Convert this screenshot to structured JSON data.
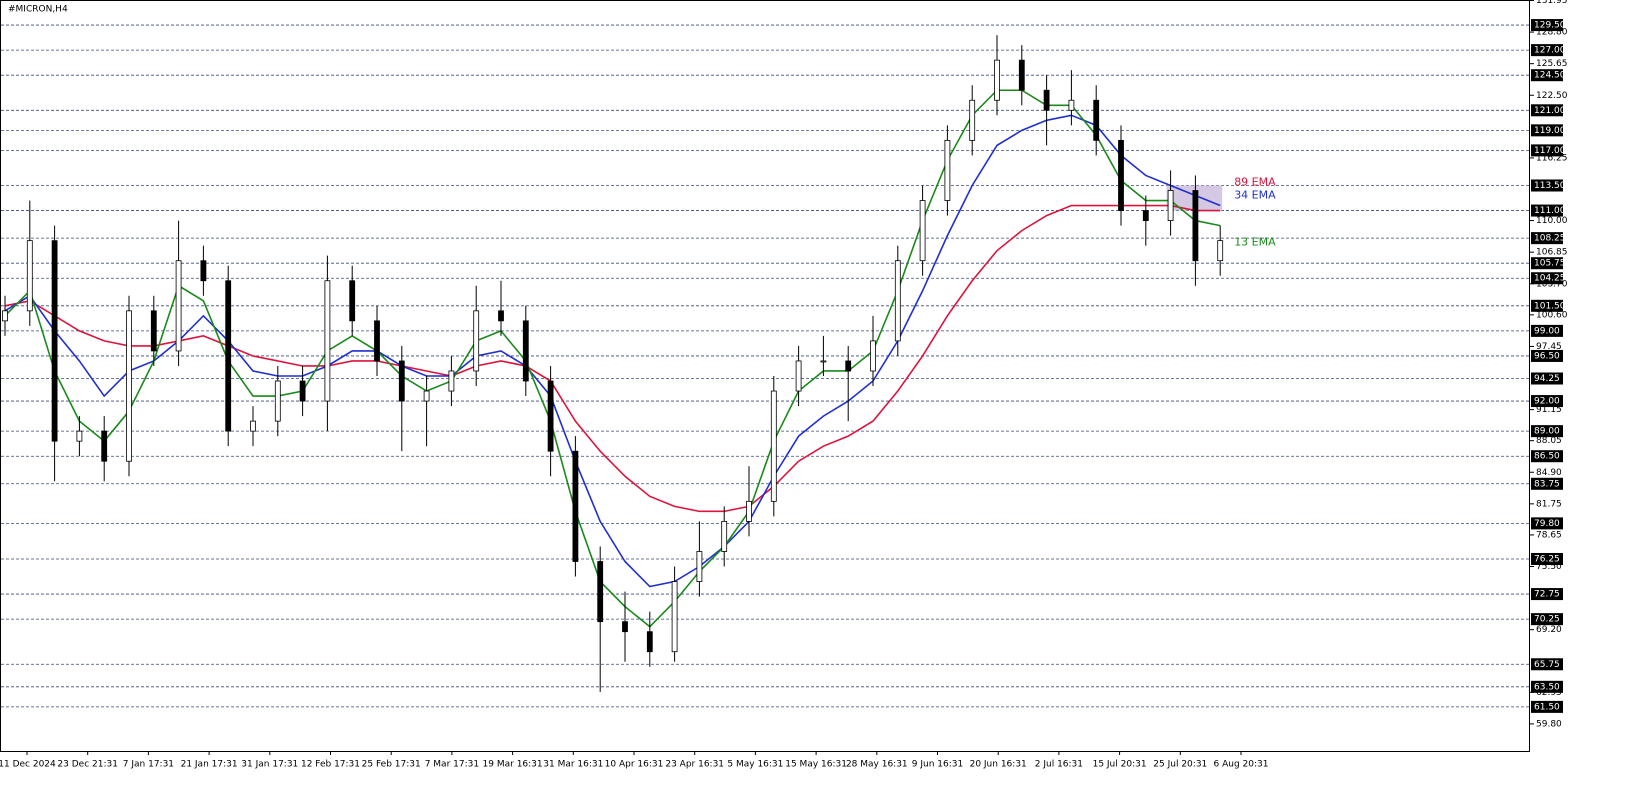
{
  "chart_data": {
    "type": "candlestick",
    "title": "#MICRON,H4",
    "x_labels": [
      "11 Dec 2024",
      "23 Dec 21:31",
      "7 Jan 17:31",
      "21 Jan 17:31",
      "31 Jan 17:31",
      "12 Feb 17:31",
      "25 Feb 17:31",
      "7 Mar 17:31",
      "19 Mar 16:31",
      "31 Mar 16:31",
      "10 Apr 16:31",
      "23 Apr 16:31",
      "5 May 16:31",
      "15 May 16:31",
      "28 May 16:31",
      "9 Jun 16:31",
      "20 Jun 16:31",
      "2 Jul 16:31",
      "15 Jul 20:31",
      "25 Jul 20:31",
      "6 Aug 20:31"
    ],
    "open": [
      100,
      101,
      108,
      88,
      89,
      86,
      101,
      97,
      106,
      104,
      89,
      90,
      94,
      92,
      104,
      100,
      96,
      92,
      93,
      95,
      101,
      100,
      94,
      87,
      76,
      70,
      69,
      67,
      74,
      77,
      80,
      82,
      93,
      96,
      96,
      95,
      98,
      106,
      112,
      118,
      122,
      126,
      123,
      121,
      122,
      118,
      111,
      110,
      113,
      106
    ],
    "high": [
      102.5,
      112,
      109.5,
      90.5,
      90.5,
      102.5,
      102.5,
      110,
      107.5,
      105.5,
      91.5,
      95.5,
      95.5,
      106.5,
      105.5,
      101.5,
      97.5,
      94.5,
      96.5,
      103.5,
      104,
      101.5,
      95.5,
      88.5,
      77.5,
      73,
      71,
      75.5,
      80,
      81.5,
      85.5,
      94.5,
      97.5,
      98.5,
      97.5,
      100.5,
      107.5,
      113.5,
      119.5,
      123.5,
      128.5,
      127.5,
      124.5,
      125,
      123.5,
      119.5,
      112.5,
      115,
      114.5,
      109.5
    ],
    "low": [
      98.5,
      99.5,
      84,
      86.5,
      84,
      84.5,
      95.5,
      95.5,
      102.5,
      87.5,
      87.5,
      88.5,
      90.5,
      89,
      98.5,
      94.5,
      87,
      87.5,
      91.5,
      93.5,
      98.5,
      92.5,
      84.5,
      74.5,
      63,
      66,
      65.5,
      66,
      72.5,
      75.5,
      78.5,
      80.5,
      91.5,
      94.5,
      90,
      93.5,
      96.5,
      104.5,
      110.5,
      116.5,
      120.5,
      121.5,
      117.5,
      119.5,
      116.5,
      109.5,
      107.5,
      108.5,
      103.5,
      104.5
    ],
    "close": [
      101,
      108,
      88,
      89,
      86,
      101,
      97,
      106,
      104,
      89,
      90,
      94,
      92,
      104,
      100,
      96,
      92,
      93,
      95,
      101,
      100,
      94,
      87,
      76,
      70,
      69,
      67,
      74,
      77,
      80,
      82,
      93,
      96,
      96,
      95,
      98,
      106,
      112,
      118,
      122,
      126,
      123,
      121,
      122,
      118,
      111,
      110,
      113,
      106,
      108
    ],
    "candle_colors": {
      "up": "#ffffff",
      "down": "#000000",
      "outline": "#000000"
    },
    "series": [
      {
        "name": "89 EMA",
        "color": "#dc143c",
        "values": [
          101.5,
          102,
          100.5,
          99,
          98,
          97.5,
          97.5,
          98,
          98.5,
          97.5,
          96.5,
          96,
          95.5,
          95.5,
          96,
          96,
          95.5,
          95,
          94.5,
          95.5,
          96,
          95.5,
          94,
          90,
          87,
          84.5,
          82.5,
          81.5,
          81,
          81,
          81.5,
          83.5,
          86,
          87.5,
          88.5,
          90,
          93,
          96.5,
          100.5,
          104,
          107,
          109,
          110.5,
          111.5,
          111.5,
          111.5,
          111.5,
          111.5,
          111,
          111
        ]
      },
      {
        "name": "34 EMA",
        "color": "#1f2fd0",
        "values": [
          101,
          102.5,
          99,
          96,
          92.5,
          95,
          96,
          98,
          100.5,
          98,
          95,
          94.5,
          94.5,
          95.5,
          97,
          97,
          95.5,
          94.5,
          94.5,
          96.5,
          97,
          95.5,
          92.5,
          86,
          80,
          76,
          73.5,
          74,
          75.5,
          77.5,
          80,
          84.5,
          88.5,
          90.5,
          92,
          94,
          98,
          103,
          108.5,
          113.5,
          117.5,
          119,
          120,
          120.5,
          119.5,
          116.5,
          114.5,
          113.5,
          112.5,
          111.5
        ]
      },
      {
        "name": "13 EMA",
        "color": "#1a8a1a",
        "values": [
          100.5,
          103,
          95,
          90,
          88,
          91,
          96,
          103.5,
          102,
          96,
          92.5,
          92.5,
          93,
          97,
          98.5,
          97,
          94.5,
          93,
          94,
          98,
          99,
          96,
          90,
          81,
          74,
          71.5,
          69.5,
          72,
          75,
          77.5,
          81,
          88,
          93,
          95,
          95,
          97,
          103,
          110,
          116,
          120.5,
          123,
          123,
          121.5,
          121.5,
          118.5,
          114,
          112,
          112,
          110,
          109.5
        ]
      }
    ],
    "zone": {
      "from": 111,
      "to": 113.5,
      "color": "#cdbedd"
    },
    "ylim": [
      57,
      132
    ],
    "yticks": [
      131.95,
      {
        "value": 128.8,
        "label": "128.80"
      },
      125.65,
      {
        "value": 122.5,
        "label": "122.50"
      },
      116.25,
      {
        "value": 110,
        "label": "110.00"
      },
      106.85,
      {
        "value": 103.7,
        "label": "103.70"
      },
      {
        "value": 100.6,
        "label": "100.60"
      },
      97.45,
      91.15,
      88.05,
      {
        "value": 84.9,
        "label": "84.90"
      },
      81.75,
      78.65,
      {
        "value": 75.5,
        "label": "75.50"
      },
      {
        "value": 69.2,
        "label": "69.20"
      },
      62.95,
      {
        "value": 59.8,
        "label": "59.80"
      }
    ],
    "levels": [
      {
        "value": 129.5,
        "label": "129.50"
      },
      {
        "value": 127,
        "label": "127.00"
      },
      {
        "value": 124.5,
        "label": "124.50"
      },
      {
        "value": 121,
        "label": "121.00"
      },
      {
        "value": 119,
        "label": "119.00"
      },
      {
        "value": 117,
        "label": "117.00"
      },
      {
        "value": 113.5,
        "label": "113.50"
      },
      {
        "value": 111,
        "label": "111.00"
      },
      108.25,
      105.75,
      104.25,
      {
        "value": 101.5,
        "label": "101.50"
      },
      {
        "value": 99,
        "label": "99.00"
      },
      {
        "value": 96.5,
        "label": "96.50"
      },
      94.25,
      {
        "value": 92,
        "label": "92.00"
      },
      {
        "value": 89,
        "label": "89.00"
      },
      {
        "value": 86.5,
        "label": "86.50"
      },
      83.75,
      {
        "value": 79.8,
        "label": "79.80"
      },
      76.25,
      72.75,
      70.25,
      65.75,
      {
        "value": 63.5,
        "label": "63.50"
      },
      {
        "value": 61.5,
        "label": "61.50"
      }
    ],
    "level_color": "#3a4a7a"
  }
}
